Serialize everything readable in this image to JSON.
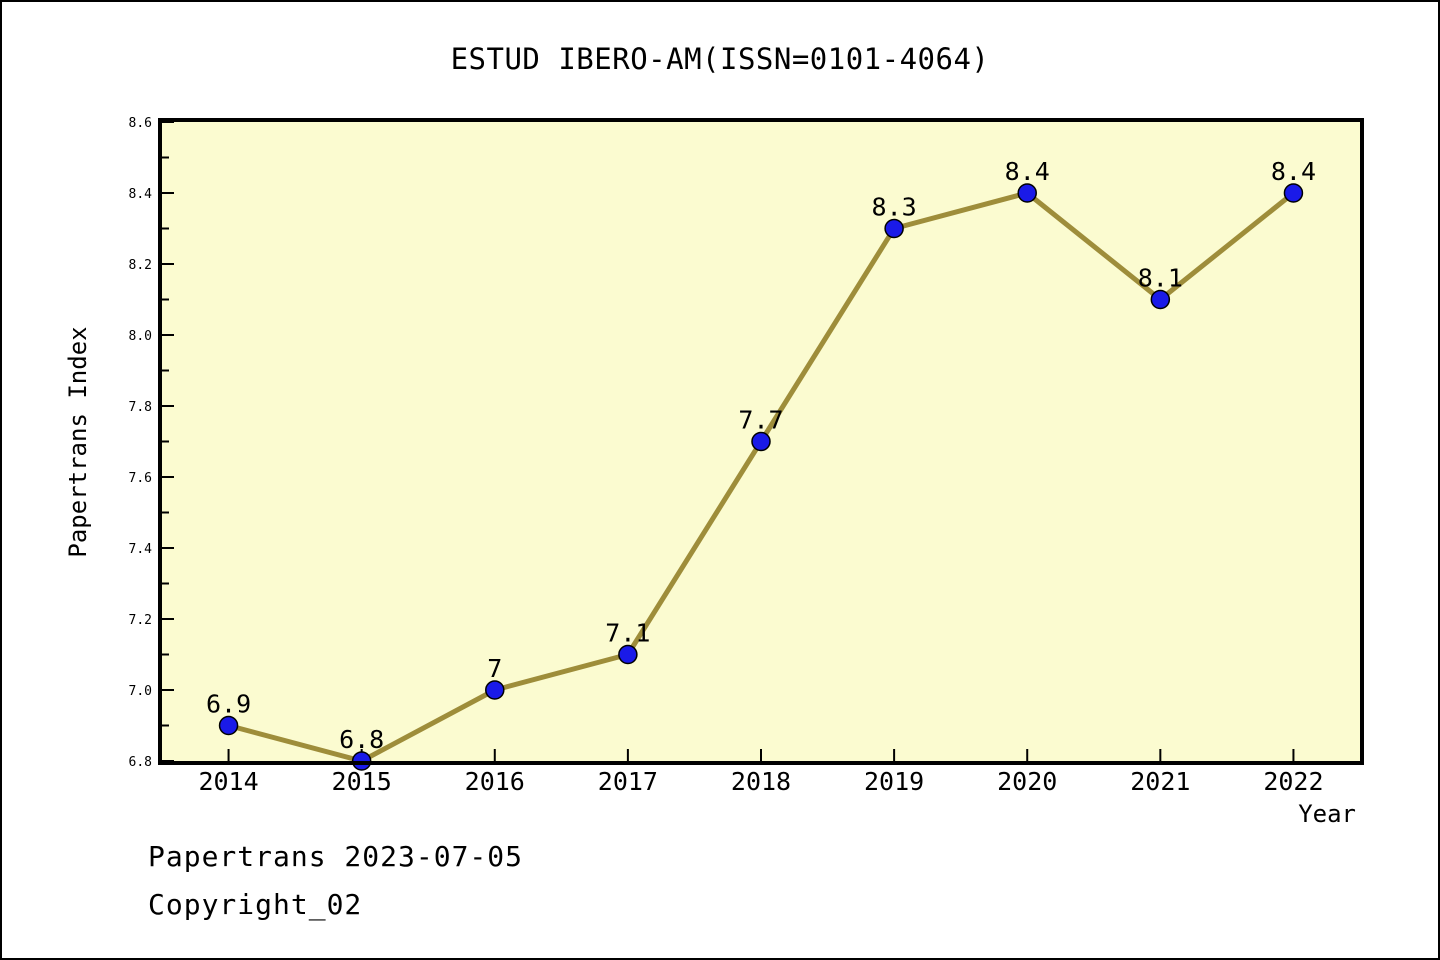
{
  "page": {
    "footer_line1": "Papertrans 2023-07-05",
    "footer_line2": "Copyright_02"
  },
  "chart_data": {
    "type": "line",
    "title": "ESTUD IBERO-AM(ISSN=0101-4064)",
    "xlabel": "Year",
    "ylabel": "Papertrans Index",
    "x": [
      2014,
      2015,
      2016,
      2017,
      2018,
      2019,
      2020,
      2021,
      2022
    ],
    "values": [
      6.9,
      6.8,
      7,
      7.1,
      7.7,
      8.3,
      8.4,
      8.1,
      8.4
    ],
    "point_labels": [
      "6.9",
      "6.8",
      "7",
      "7.1",
      "7.7",
      "8.3",
      "8.4",
      "8.1",
      "8.4"
    ],
    "xlim": [
      2013.5,
      2022.5
    ],
    "ylim": [
      6.8,
      8.6
    ],
    "ytick_step": 0.2,
    "ytick_minor_step": 0.1,
    "grid": false,
    "legend_position": "none",
    "colors": {
      "line": "#9E8D3A",
      "marker_fill": "#1A1AE8",
      "marker_edge": "#000000",
      "plot_bg": "#FBFBD0",
      "axis": "#000000",
      "text": "#000000"
    }
  }
}
